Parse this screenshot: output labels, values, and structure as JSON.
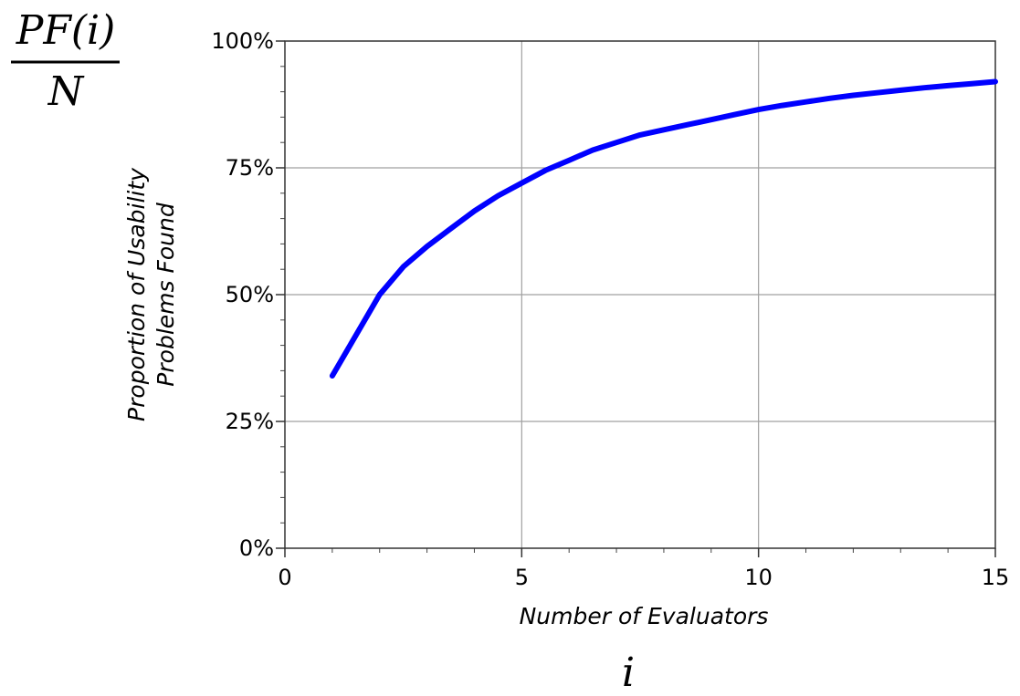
{
  "formula": {
    "numerator": "PF(i)",
    "denominator": "N",
    "x_symbol": "i"
  },
  "chart_data": {
    "type": "line",
    "xlabel": "Number of Evaluators",
    "ylabel_line1": "Proportion of Usability",
    "ylabel_line2": "Problems Found",
    "xlim": [
      0,
      15
    ],
    "ylim": [
      0,
      100
    ],
    "x_ticks": [
      0,
      5,
      10,
      15
    ],
    "x_tick_labels": [
      "0",
      "5",
      "10",
      "15"
    ],
    "y_ticks": [
      0,
      25,
      50,
      75,
      100
    ],
    "y_tick_labels": [
      "0%",
      "25%",
      "50%",
      "75%",
      "100%"
    ],
    "grid": true,
    "series": [
      {
        "color": "#0000ff",
        "x": [
          1,
          1.5,
          2,
          2.5,
          3,
          3.5,
          4,
          4.5,
          5,
          5.5,
          6,
          6.5,
          7,
          7.5,
          8,
          8.5,
          9,
          9.5,
          10,
          10.5,
          11,
          11.5,
          12,
          12.5,
          13,
          13.5,
          14,
          14.5,
          15
        ],
        "y": [
          34,
          42,
          50,
          55.5,
          59.5,
          63,
          66.5,
          69.5,
          72,
          74.5,
          76.5,
          78.5,
          80,
          81.5,
          82.5,
          83.5,
          84.5,
          85.5,
          86.5,
          87.3,
          88,
          88.7,
          89.3,
          89.8,
          90.3,
          90.8,
          91.2,
          91.6,
          92
        ]
      }
    ]
  }
}
